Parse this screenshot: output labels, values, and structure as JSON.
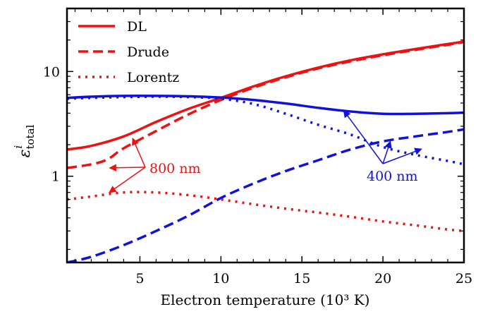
{
  "chart_data": {
    "type": "line",
    "xlabel": "Electron temperature (10³ K)",
    "ylabel": "ε",
    "ylabel_sup": "i",
    "ylabel_sub": "total",
    "xlim": [
      0.5,
      25
    ],
    "ylim": [
      0.15,
      40
    ],
    "yscale": "log",
    "x_ticks": [
      5,
      10,
      15,
      20,
      25
    ],
    "x_tick_labels": [
      "5",
      "10",
      "15",
      "20",
      "25"
    ],
    "y_ticks": [
      1,
      10
    ],
    "y_tick_labels": [
      "1",
      "10"
    ],
    "legend": {
      "position": "top-left",
      "entries": [
        {
          "label": "DL",
          "style": "solid",
          "color": "#ee1111"
        },
        {
          "label": "Drude",
          "style": "dashed",
          "color": "#ee1111"
        },
        {
          "label": "Lorentz",
          "style": "dotted",
          "color": "#ee1111"
        }
      ]
    },
    "series": [
      {
        "model": "DL",
        "wavelength": "800 nm",
        "color": "#ee1111",
        "style": "solid",
        "points": [
          [
            0.5,
            1.8
          ],
          [
            2,
            1.95
          ],
          [
            4,
            2.4
          ],
          [
            6,
            3.3
          ],
          [
            8,
            4.4
          ],
          [
            10,
            5.6
          ],
          [
            12,
            7.2
          ],
          [
            14,
            9.0
          ],
          [
            16,
            10.9
          ],
          [
            18,
            12.8
          ],
          [
            20,
            14.6
          ],
          [
            22,
            16.4
          ],
          [
            24,
            18.3
          ],
          [
            25,
            19.3
          ]
        ]
      },
      {
        "model": "Drude",
        "wavelength": "800 nm",
        "color": "#ee1111",
        "style": "dashed",
        "points": [
          [
            0.5,
            1.2
          ],
          [
            2,
            1.3
          ],
          [
            3,
            1.45
          ],
          [
            4,
            1.85
          ],
          [
            6,
            2.7
          ],
          [
            8,
            3.9
          ],
          [
            10,
            5.35
          ],
          [
            12,
            7.0
          ],
          [
            14,
            8.8
          ],
          [
            16,
            10.7
          ],
          [
            18,
            12.5
          ],
          [
            20,
            14.3
          ],
          [
            22,
            16.1
          ],
          [
            24,
            18.0
          ],
          [
            25,
            19.1
          ]
        ]
      },
      {
        "model": "Lorentz",
        "wavelength": "800 nm",
        "color": "#ee1111",
        "style": "dotted",
        "points": [
          [
            0.5,
            0.6
          ],
          [
            2,
            0.64
          ],
          [
            4,
            0.7
          ],
          [
            6,
            0.7
          ],
          [
            8,
            0.66
          ],
          [
            10,
            0.6
          ],
          [
            12,
            0.54
          ],
          [
            14,
            0.49
          ],
          [
            16,
            0.45
          ],
          [
            18,
            0.41
          ],
          [
            20,
            0.37
          ],
          [
            22,
            0.34
          ],
          [
            24,
            0.31
          ],
          [
            25,
            0.3
          ]
        ]
      },
      {
        "model": "DL",
        "wavelength": "400 nm",
        "color": "#1111dd",
        "style": "solid",
        "points": [
          [
            0.5,
            5.6
          ],
          [
            2,
            5.75
          ],
          [
            4,
            5.85
          ],
          [
            6,
            5.85
          ],
          [
            8,
            5.8
          ],
          [
            10,
            5.65
          ],
          [
            12,
            5.35
          ],
          [
            14,
            4.95
          ],
          [
            16,
            4.5
          ],
          [
            18,
            4.15
          ],
          [
            20,
            3.95
          ],
          [
            22,
            3.95
          ],
          [
            24,
            4.0
          ],
          [
            25,
            4.05
          ]
        ]
      },
      {
        "model": "Drude",
        "wavelength": "400 nm",
        "color": "#1111dd",
        "style": "dashed",
        "points": [
          [
            0.5,
            0.15
          ],
          [
            2,
            0.17
          ],
          [
            4,
            0.22
          ],
          [
            6,
            0.3
          ],
          [
            8,
            0.42
          ],
          [
            10,
            0.62
          ],
          [
            12,
            0.85
          ],
          [
            14,
            1.12
          ],
          [
            16,
            1.42
          ],
          [
            18,
            1.8
          ],
          [
            20,
            2.15
          ],
          [
            22,
            2.4
          ],
          [
            24,
            2.65
          ],
          [
            25,
            2.8
          ]
        ]
      },
      {
        "model": "Lorentz",
        "wavelength": "400 nm",
        "color": "#1111dd",
        "style": "dotted",
        "points": [
          [
            0.5,
            5.5
          ],
          [
            2,
            5.6
          ],
          [
            4,
            5.7
          ],
          [
            6,
            5.75
          ],
          [
            8,
            5.7
          ],
          [
            10,
            5.5
          ],
          [
            12,
            4.9
          ],
          [
            14,
            3.95
          ],
          [
            16,
            3.1
          ],
          [
            18,
            2.5
          ],
          [
            20,
            1.9
          ],
          [
            22,
            1.6
          ],
          [
            24,
            1.4
          ],
          [
            25,
            1.3
          ]
        ]
      }
    ],
    "annotations": [
      {
        "text": "800 nm",
        "color": "#ee1111",
        "points_to": [
          [
            3,
            1.2
          ],
          [
            4.5,
            2.4
          ],
          [
            3,
            0.68
          ]
        ]
      },
      {
        "text": "400 nm",
        "color": "#1111dd",
        "points_to": [
          [
            17.5,
            4.4
          ],
          [
            20.5,
            2.25
          ],
          [
            22.5,
            1.85
          ]
        ]
      }
    ]
  }
}
